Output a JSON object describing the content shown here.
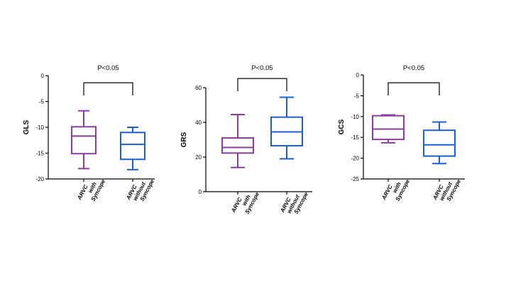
{
  "chart_data": [
    {
      "type": "box",
      "ylabel": "GLS",
      "ylim": [
        -20,
        0
      ],
      "yticks": [
        0,
        -5,
        -10,
        -15,
        -20
      ],
      "significance": "P<0.05",
      "categories": [
        [
          "ARVC",
          "with",
          "Syncope"
        ],
        [
          "ARVC",
          "without",
          "Syncope"
        ]
      ],
      "boxes": [
        {
          "min": -18.0,
          "q1": -15.1,
          "median": -11.7,
          "q3": -9.9,
          "max": -6.8,
          "color": "#8b3c9e"
        },
        {
          "min": -18.2,
          "q1": -16.2,
          "median": -13.3,
          "q3": -11.0,
          "max": -10.0,
          "color": "#1a5fd8"
        }
      ]
    },
    {
      "type": "box",
      "ylabel": "GRS",
      "ylim": [
        0,
        60
      ],
      "yticks": [
        60,
        40,
        20,
        0
      ],
      "significance": "P<0.05",
      "categories": [
        [
          "ARVC",
          "with",
          "Syncope"
        ],
        [
          "ARVC",
          "without",
          "Syncope"
        ]
      ],
      "boxes": [
        {
          "min": 14.0,
          "q1": 22.3,
          "median": 25.5,
          "q3": 31.0,
          "max": 44.5,
          "color": "#8b3c9e"
        },
        {
          "min": 19.0,
          "q1": 26.5,
          "median": 34.5,
          "q3": 43.0,
          "max": 54.5,
          "color": "#1a5fd8"
        }
      ]
    },
    {
      "type": "box",
      "ylabel": "GCS",
      "ylim": [
        -25,
        0
      ],
      "yticks": [
        0,
        -5,
        -10,
        -15,
        -20,
        -25
      ],
      "significance": "P<0.05",
      "categories": [
        [
          "ARVC",
          "with",
          "Syncope"
        ],
        [
          "ARVC",
          "without",
          "Syncope"
        ]
      ],
      "boxes": [
        {
          "min": -16.3,
          "q1": -15.5,
          "median": -13.0,
          "q3": -9.8,
          "max": -9.6,
          "color": "#8b3c9e"
        },
        {
          "min": -21.3,
          "q1": -19.5,
          "median": -16.8,
          "q3": -13.3,
          "max": -11.3,
          "color": "#1a5fd8"
        }
      ]
    }
  ]
}
